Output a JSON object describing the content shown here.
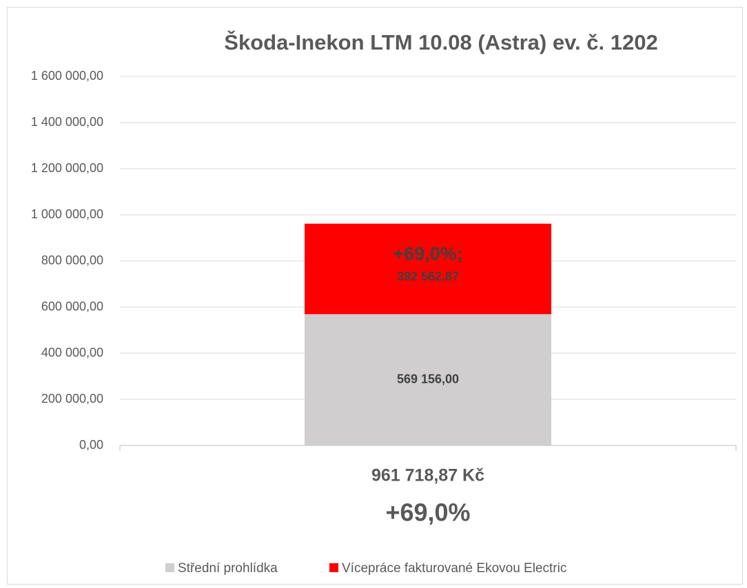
{
  "chart_data": {
    "type": "stacked_bar",
    "title": "Škoda-Inekon LTM 10.08 (Astra) ev. č. 1202",
    "categories": [
      "961 718,87 Kč"
    ],
    "annotations": [
      "+69,0%"
    ],
    "series": [
      {
        "name": "Střední prohlídka",
        "color": "#d0cece",
        "values": [
          569156
        ],
        "value_labels": [
          [
            "569 156,00"
          ]
        ]
      },
      {
        "name": "Vícepráce fakturované Ekovou Electric",
        "color": "#ff0000",
        "values": [
          392562.87
        ],
        "value_labels": [
          [
            "+69,0%;",
            "392 562,87"
          ]
        ]
      }
    ],
    "ylim": [
      0,
      1600000
    ],
    "yticks": [
      {
        "value": 0,
        "label": "0,00"
      },
      {
        "value": 200000,
        "label": "200 000,00"
      },
      {
        "value": 400000,
        "label": "400 000,00"
      },
      {
        "value": 600000,
        "label": "600 000,00"
      },
      {
        "value": 800000,
        "label": "800 000,00"
      },
      {
        "value": 1000000,
        "label": "1 000 000,00"
      },
      {
        "value": 1200000,
        "label": "1 200 000,00"
      },
      {
        "value": 1400000,
        "label": "1 400 000,00"
      },
      {
        "value": 1600000,
        "label": "1 600 000,00"
      }
    ],
    "grid": true,
    "legend": "bottom"
  }
}
